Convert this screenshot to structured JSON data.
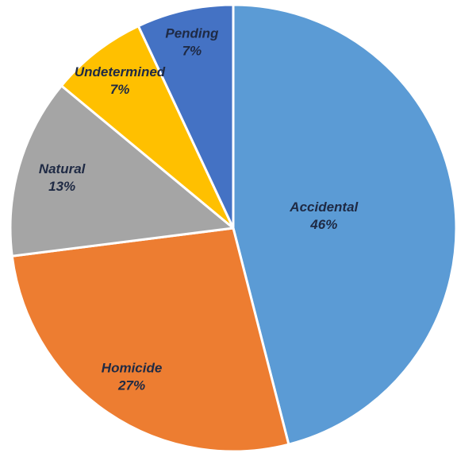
{
  "chart_data": {
    "type": "pie",
    "categories": [
      "Accidental",
      "Homicide",
      "Natural",
      "Undetermined",
      "Pending"
    ],
    "values": [
      46,
      27,
      13,
      7,
      7
    ],
    "value_labels": [
      "46%",
      "27%",
      "13%",
      "7%",
      "7%"
    ],
    "colors": [
      "#5b9bd5",
      "#ed7d31",
      "#a5a5a5",
      "#ffc000",
      "#4472c4"
    ]
  }
}
